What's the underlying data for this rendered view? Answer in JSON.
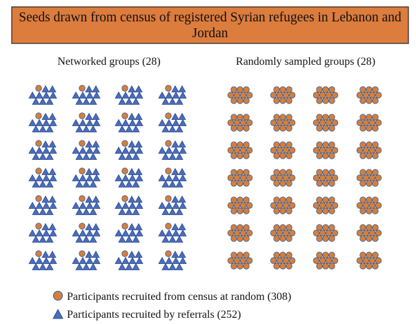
{
  "title": "Seeds drawn from census of registered Syrian refugees in Lebanon and Jordan",
  "panels": [
    {
      "label": "Networked groups (28)"
    },
    {
      "label": "Randomly sampled groups (28)"
    }
  ],
  "legend": [
    {
      "label": "Participants recruited from census at random (308)"
    },
    {
      "label": "Participants recruited by referrals (252)"
    }
  ]
}
